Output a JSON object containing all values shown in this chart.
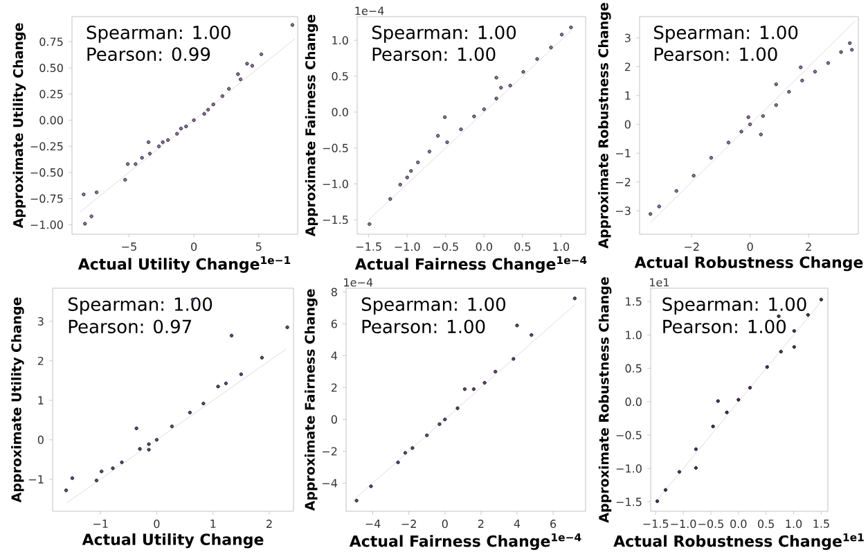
{
  "chart_data": [
    {
      "type": "scatter",
      "xlabel": "Actual Utility Change$^{1e−1}$",
      "ylabel": "Approximate Utility Change",
      "xlim": [
        -9.4,
        8.0
      ],
      "ylim": [
        -1.09,
        0.99
      ],
      "xticks": [
        {
          "value": -5,
          "label": "−5"
        },
        0,
        5
      ],
      "yticks": [
        {
          "value": -1,
          "label": "−1.00"
        },
        {
          "value": -0.75,
          "label": "−0.75"
        },
        {
          "value": -0.5,
          "label": "−0.50"
        },
        {
          "value": -0.25,
          "label": "−0.25"
        },
        {
          "value": 0,
          "label": "0.00"
        },
        {
          "value": 0.25,
          "label": "0.25"
        },
        {
          "value": 0.5,
          "label": "0.50"
        },
        {
          "value": 0.75,
          "label": "0.75"
        }
      ],
      "annotations": [
        "Spearman: 1.00",
        "Pearson: 0.99"
      ],
      "series": [
        {
          "type": "line",
          "marker": "none",
          "color": "#d3d3d3",
          "x": [
            -8.8,
            7.8
          ],
          "values": [
            -0.88,
            0.78
          ]
        },
        {
          "marker": "circle",
          "color": "#8e6fa5",
          "x": [
            7.6,
            5.2,
            4.1,
            4.5,
            3.4,
            3.6,
            2.7,
            2.2,
            1.5,
            1.1,
            0.8,
            0,
            -0.6,
            -1.0,
            -1.3,
            -2.0,
            -2.4,
            -2.7,
            -3.5,
            -3.4,
            -4.0,
            -4.5,
            -5.1,
            -5.3,
            -8.5,
            -7.5,
            -7.9,
            -8.4
          ],
          "values": [
            0.91,
            0.63,
            0.54,
            0.52,
            0.44,
            0.39,
            0.3,
            0.23,
            0.15,
            0.1,
            0.06,
            0.0,
            -0.06,
            -0.08,
            -0.13,
            -0.19,
            -0.21,
            -0.25,
            -0.21,
            -0.32,
            -0.36,
            -0.42,
            -0.42,
            -0.57,
            -0.71,
            -0.69,
            -0.92,
            -0.99
          ]
        }
      ]
    },
    {
      "type": "scatter",
      "xlabel": "Actual Fairness Change$^{1e−4}$",
      "ylabel": "Approximate Fairness Change",
      "xlim": [
        -1.65,
        1.32
      ],
      "ylim": [
        -1.7,
        1.33
      ],
      "xticks": [
        {
          "value": -1.5,
          "label": "−1.5"
        },
        {
          "value": -1,
          "label": "−1.0"
        },
        {
          "value": -0.5,
          "label": "−0.5"
        },
        {
          "value": 0,
          "label": "0.0"
        },
        0.5,
        {
          "value": 1,
          "label": "1.0"
        }
      ],
      "yticks": [
        {
          "value": -1.5,
          "label": "−1.5"
        },
        {
          "value": -1,
          "label": "−1.0"
        },
        {
          "value": -0.5,
          "label": "−0.5"
        },
        {
          "value": 0,
          "label": "0.0"
        },
        0.5,
        {
          "value": 1,
          "label": "1.0"
        }
      ],
      "annotations": [
        "Spearman: 1.00",
        "Pearson: 1.00",
        "1e−4"
      ],
      "series": [
        {
          "type": "line",
          "marker": "none",
          "color": "#d3d3d3",
          "x": [
            -1.5,
            1.15
          ],
          "values": [
            -1.5,
            1.15
          ]
        },
        {
          "marker": "circle",
          "color": "#8e6fa5",
          "x": [
            -1.49,
            -1.22,
            -1.09,
            -1.0,
            -0.95,
            -0.86,
            -0.71,
            -0.6,
            -0.51,
            -0.48,
            -0.3,
            -0.13,
            0,
            0.16,
            0.16,
            0.22,
            0.34,
            0.51,
            0.69,
            0.87,
            1.01,
            1.13
          ],
          "values": [
            -1.56,
            -1.21,
            -1.01,
            -0.91,
            -0.82,
            -0.7,
            -0.55,
            -0.33,
            -0.07,
            -0.42,
            -0.24,
            -0.06,
            0.04,
            0.48,
            0.19,
            0.34,
            0.37,
            0.56,
            0.74,
            0.9,
            1.08,
            1.18
          ]
        }
      ]
    },
    {
      "type": "scatter",
      "xlabel": "Actual Robustness Change",
      "ylabel": "Approximate Robustness Change",
      "xlim": [
        -3.78,
        3.7
      ],
      "ylim": [
        -3.81,
        3.74
      ],
      "xticks": [
        {
          "value": -2,
          "label": "−2"
        },
        0,
        2
      ],
      "yticks": [
        {
          "value": -3,
          "label": "−3"
        },
        {
          "value": -2,
          "label": "−2"
        },
        {
          "value": -1,
          "label": "−1"
        },
        0,
        1,
        2,
        3
      ],
      "annotations": [
        "Spearman: 1.00",
        "Pearson: 1.00"
      ],
      "series": [
        {
          "type": "line",
          "marker": "none",
          "color": "#d3d3d3",
          "x": [
            -3.4,
            3.6
          ],
          "values": [
            -3.4,
            3.6
          ]
        },
        {
          "marker": "circle",
          "color": "#8e6fa5",
          "x": [
            -3.41,
            -3.11,
            -2.52,
            -1.93,
            -1.33,
            -0.74,
            -0.3,
            0,
            -0.06,
            0.37,
            0.44,
            0.89,
            0.89,
            1.33,
            1.78,
            1.73,
            2.22,
            2.67,
            3.11,
            3.41,
            3.48
          ],
          "values": [
            -3.11,
            -2.85,
            -2.31,
            -1.78,
            -1.16,
            -0.63,
            -0.25,
            0,
            0.25,
            -0.35,
            0.29,
            0.67,
            1.39,
            1.13,
            1.52,
            1.98,
            1.83,
            2.13,
            2.51,
            2.82,
            2.59
          ]
        }
      ]
    },
    {
      "type": "scatter",
      "xlabel": "Actual Utility Change",
      "ylabel": "Approximate Utility Change",
      "xlim": [
        -1.85,
        2.43
      ],
      "ylim": [
        -1.81,
        3.84
      ],
      "xticks": [
        {
          "value": -1,
          "label": "−1"
        },
        0,
        1,
        2
      ],
      "yticks": [
        {
          "value": -1,
          "label": "−1"
        },
        0,
        1,
        2,
        3
      ],
      "annotations": [
        "Spearman: 1.00",
        "Pearson: 0.97"
      ],
      "series": [
        {
          "type": "line",
          "marker": "none",
          "color": "#d3d3d3",
          "x": [
            -1.6,
            2.3
          ],
          "values": [
            -1.6,
            2.3
          ]
        },
        {
          "marker": "circle",
          "color": "#5d4378",
          "x": [
            -1.61,
            -1.5,
            -1.07,
            -0.98,
            -0.78,
            -0.62,
            -0.36,
            -0.3,
            -0.14,
            -0.14,
            0,
            0.27,
            0.59,
            0.64,
            0.83,
            1.09,
            1.23,
            1.33,
            1.5,
            1.87,
            2.32
          ],
          "values": [
            -1.28,
            -0.97,
            -1.03,
            -0.8,
            -0.72,
            -0.57,
            0.29,
            -0.23,
            -0.11,
            -0.25,
            0,
            0.34,
            0.69,
            3.55,
            0.92,
            1.35,
            1.43,
            2.64,
            1.66,
            2.08,
            2.85
          ]
        }
      ]
    },
    {
      "type": "scatter",
      "xlabel": "Actual Fairness Change$^{1e−4}$",
      "ylabel": "Approximate Fairness Change",
      "xlim": [
        -5.48,
        7.8
      ],
      "ylim": [
        -5.77,
        8.24
      ],
      "xticks": [
        {
          "value": -4,
          "label": "−4"
        },
        {
          "value": -2,
          "label": "−2"
        },
        0,
        2,
        4,
        6
      ],
      "yticks": [
        {
          "value": -4,
          "label": "−4"
        },
        {
          "value": -2,
          "label": "−2"
        },
        0,
        2,
        4,
        6,
        8
      ],
      "annotations": [
        "Spearman: 1.00",
        "Pearson: 1.00",
        "1e−4"
      ],
      "series": [
        {
          "type": "line",
          "marker": "none",
          "color": "#d3d3d3",
          "x": [
            -5.0,
            7.2
          ],
          "values": [
            -5.0,
            7.2
          ]
        },
        {
          "marker": "circle",
          "color": "#5d4378",
          "x": [
            -4.9,
            -4.1,
            -2.6,
            -2.2,
            -1.8,
            -1.0,
            -0.3,
            0,
            0.7,
            1.1,
            1.6,
            2.2,
            2.8,
            3.8,
            4.0,
            4.8,
            7.2
          ],
          "values": [
            -5.1,
            -4.2,
            -2.7,
            -2.1,
            -1.8,
            -1.0,
            -0.3,
            0,
            0.7,
            1.9,
            1.9,
            2.3,
            3.0,
            3.8,
            5.9,
            5.3,
            7.6
          ]
        }
      ]
    },
    {
      "type": "scatter",
      "xlabel": "Actual Robustness Change$^{1e1}$",
      "ylabel": "Approximate Robustness Change",
      "xlim": [
        -1.59,
        1.62
      ],
      "ylim": [
        -1.64,
        1.7
      ],
      "xticks": [
        {
          "value": -1.5,
          "label": "−1.5"
        },
        {
          "value": -1,
          "label": "−1.0"
        },
        {
          "value": -0.5,
          "label": "−0.5"
        },
        {
          "value": 0,
          "label": "0.0"
        },
        0.5,
        {
          "value": 1,
          "label": "1.0"
        },
        1.5
      ],
      "yticks": [
        {
          "value": -1.5,
          "label": "−1.5"
        },
        {
          "value": -1,
          "label": "−1.0"
        },
        {
          "value": -0.5,
          "label": "−0.5"
        },
        {
          "value": 0,
          "label": "0.0"
        },
        0.5,
        {
          "value": 1,
          "label": "1.0"
        },
        1.5
      ],
      "annotations": [
        "Spearman: 1.00",
        "Pearson: 1.00",
        "1e1"
      ],
      "series": [
        {
          "type": "line",
          "marker": "none",
          "color": "#d3d3d3",
          "x": [
            -1.5,
            1.5
          ],
          "values": [
            -1.5,
            1.5
          ]
        },
        {
          "marker": "circle",
          "color": "#4a2d5e",
          "x": [
            -1.47,
            -1.32,
            -1.07,
            -0.77,
            -0.77,
            -0.46,
            -0.37,
            -0.21,
            0,
            0.21,
            0.52,
            0.77,
            0.73,
            1.01,
            1.01,
            1.26,
            1.5
          ],
          "values": [
            -1.49,
            -1.32,
            -1.05,
            -0.99,
            -0.71,
            -0.37,
            0.01,
            -0.16,
            0.03,
            0.21,
            0.52,
            0.75,
            1.28,
            0.82,
            1.06,
            1.3,
            1.53
          ]
        }
      ]
    }
  ]
}
